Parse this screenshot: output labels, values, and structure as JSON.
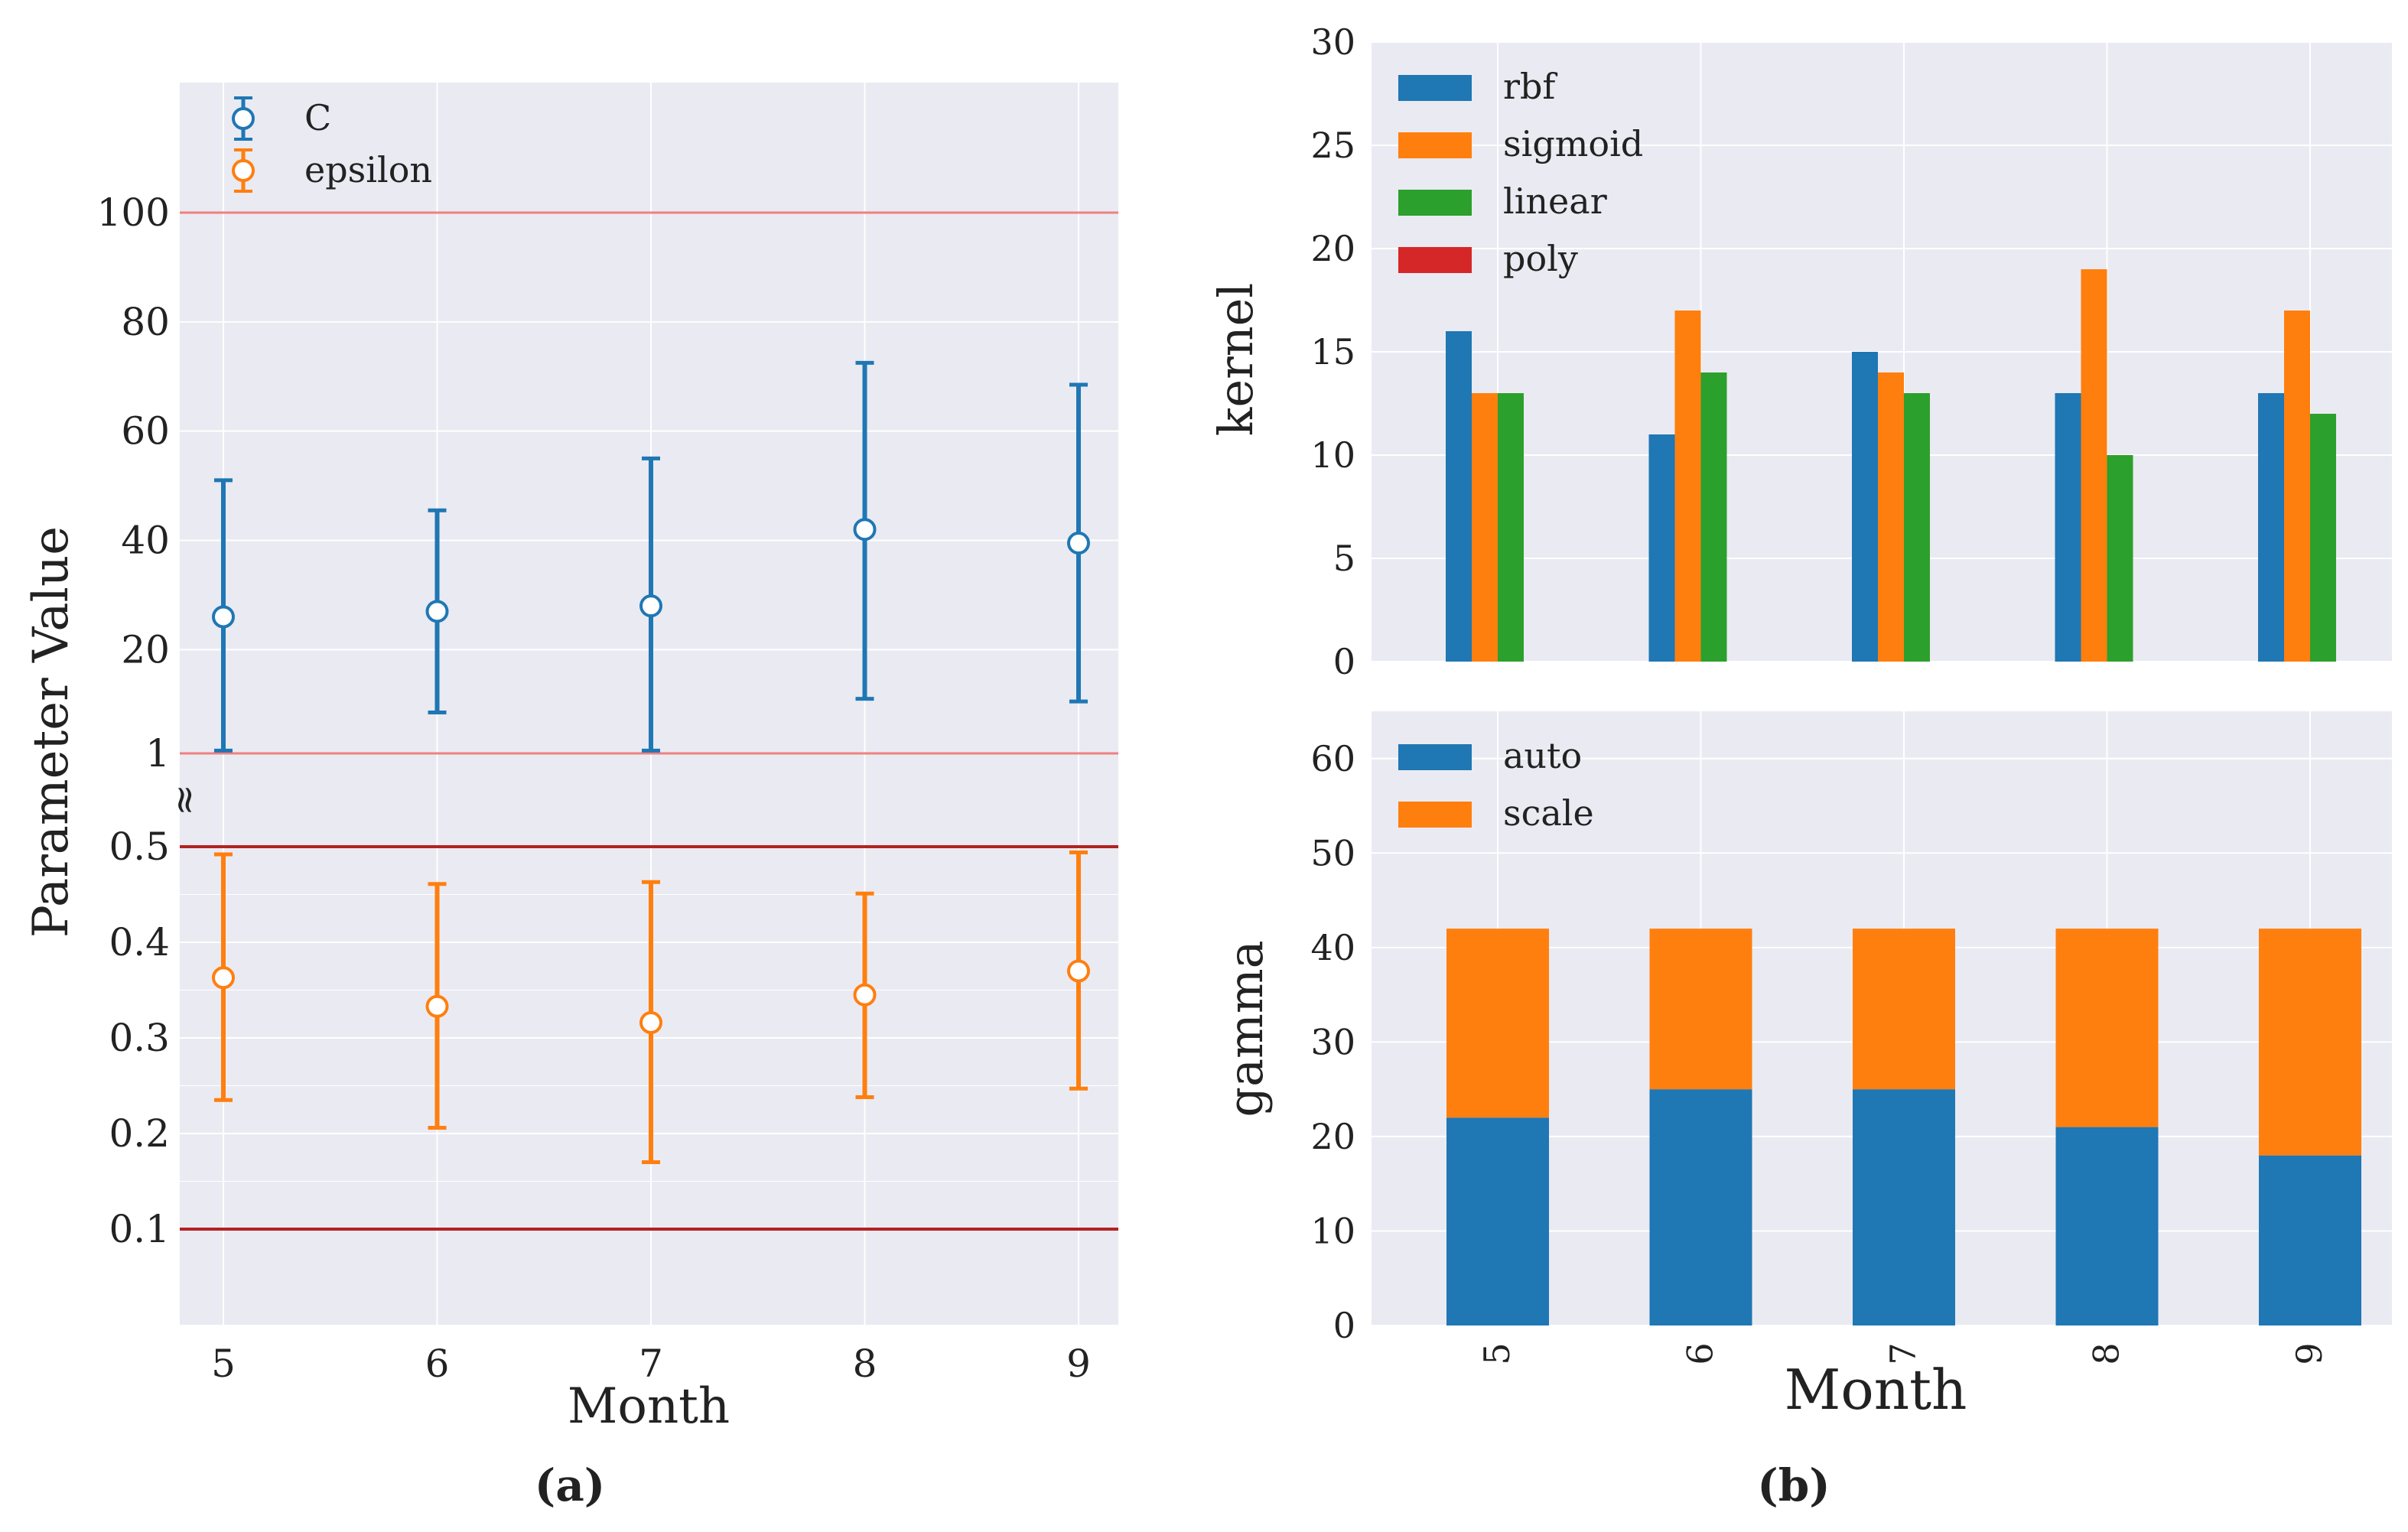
{
  "colors": {
    "panel_bg": "#eaeaf2",
    "grid": "#ffffff",
    "blue": "#1f77b4",
    "orange": "#ff7f0e",
    "green": "#2ca02c",
    "red": "#d62728",
    "ref_light": "#f08080",
    "ref_dark": "#b22222"
  },
  "captions": {
    "a": "(a)",
    "b": "(b)"
  },
  "chart_data": [
    {
      "id": "a",
      "type": "scatter",
      "subtype": "errorbar-with-broken-y-axis",
      "xlabel": "Month",
      "ylabel": "Parameter Value",
      "categories": [
        "5",
        "6",
        "7",
        "8",
        "9"
      ],
      "axis_break_symbol": "≈",
      "legend_position": "top-left",
      "upper": {
        "ylim": [
          1,
          122
        ],
        "yticks": [
          1,
          20,
          40,
          60,
          80,
          100
        ],
        "ytick_labels": [
          "1",
          "20",
          "40",
          "60",
          "80",
          "100"
        ],
        "reference_lines": [
          100,
          1
        ]
      },
      "lower": {
        "ylim": [
          0,
          0.5
        ],
        "yticks": [
          0.1,
          0.2,
          0.3,
          0.4,
          0.5
        ],
        "ytick_labels": [
          "0.1",
          "0.2",
          "0.3",
          "0.4",
          "0.5"
        ],
        "reference_lines": [
          0.5,
          0.1
        ]
      },
      "series": [
        {
          "name": "C",
          "color": "#1f77b4",
          "segment": "upper",
          "values": [
            26,
            27,
            28,
            42,
            39.5
          ],
          "lower_err": [
            1.5,
            8.5,
            1.5,
            11,
            10.5
          ],
          "upper_err": [
            51,
            45.5,
            55,
            72.5,
            68.5
          ]
        },
        {
          "name": "epsilon",
          "color": "#ff7f0e",
          "segment": "lower",
          "values": [
            0.363,
            0.333,
            0.316,
            0.345,
            0.37
          ],
          "lower_err": [
            0.235,
            0.206,
            0.17,
            0.238,
            0.247
          ],
          "upper_err": [
            0.492,
            0.461,
            0.463,
            0.451,
            0.494
          ]
        }
      ]
    },
    {
      "id": "b-top",
      "type": "bar",
      "ylabel": "kernel",
      "categories": [
        "5",
        "6",
        "7",
        "8",
        "9"
      ],
      "ylim": [
        0,
        30
      ],
      "yticks": [
        0,
        5,
        10,
        15,
        20,
        25,
        30
      ],
      "legend_position": "top-left",
      "series": [
        {
          "name": "rbf",
          "color": "#1f77b4",
          "values": [
            16,
            11,
            15,
            13,
            13
          ]
        },
        {
          "name": "sigmoid",
          "color": "#ff7f0e",
          "values": [
            13,
            17,
            14,
            19,
            17
          ]
        },
        {
          "name": "linear",
          "color": "#2ca02c",
          "values": [
            13,
            14,
            13,
            10,
            12
          ]
        },
        {
          "name": "poly",
          "color": "#d62728",
          "values": [
            0,
            0,
            0,
            0,
            0
          ]
        }
      ]
    },
    {
      "id": "b-bottom",
      "type": "bar",
      "subtype": "stacked",
      "xlabel": "Month",
      "ylabel": "gamma",
      "categories": [
        "5",
        "6",
        "7",
        "8",
        "9"
      ],
      "ylim": [
        0,
        65
      ],
      "yticks": [
        0,
        10,
        20,
        30,
        40,
        50,
        60
      ],
      "legend_position": "top-left",
      "series": [
        {
          "name": "auto",
          "color": "#1f77b4",
          "values": [
            22,
            25,
            25,
            21,
            18
          ]
        },
        {
          "name": "scale",
          "color": "#ff7f0e",
          "values": [
            20,
            17,
            17,
            21,
            24
          ]
        }
      ]
    }
  ]
}
